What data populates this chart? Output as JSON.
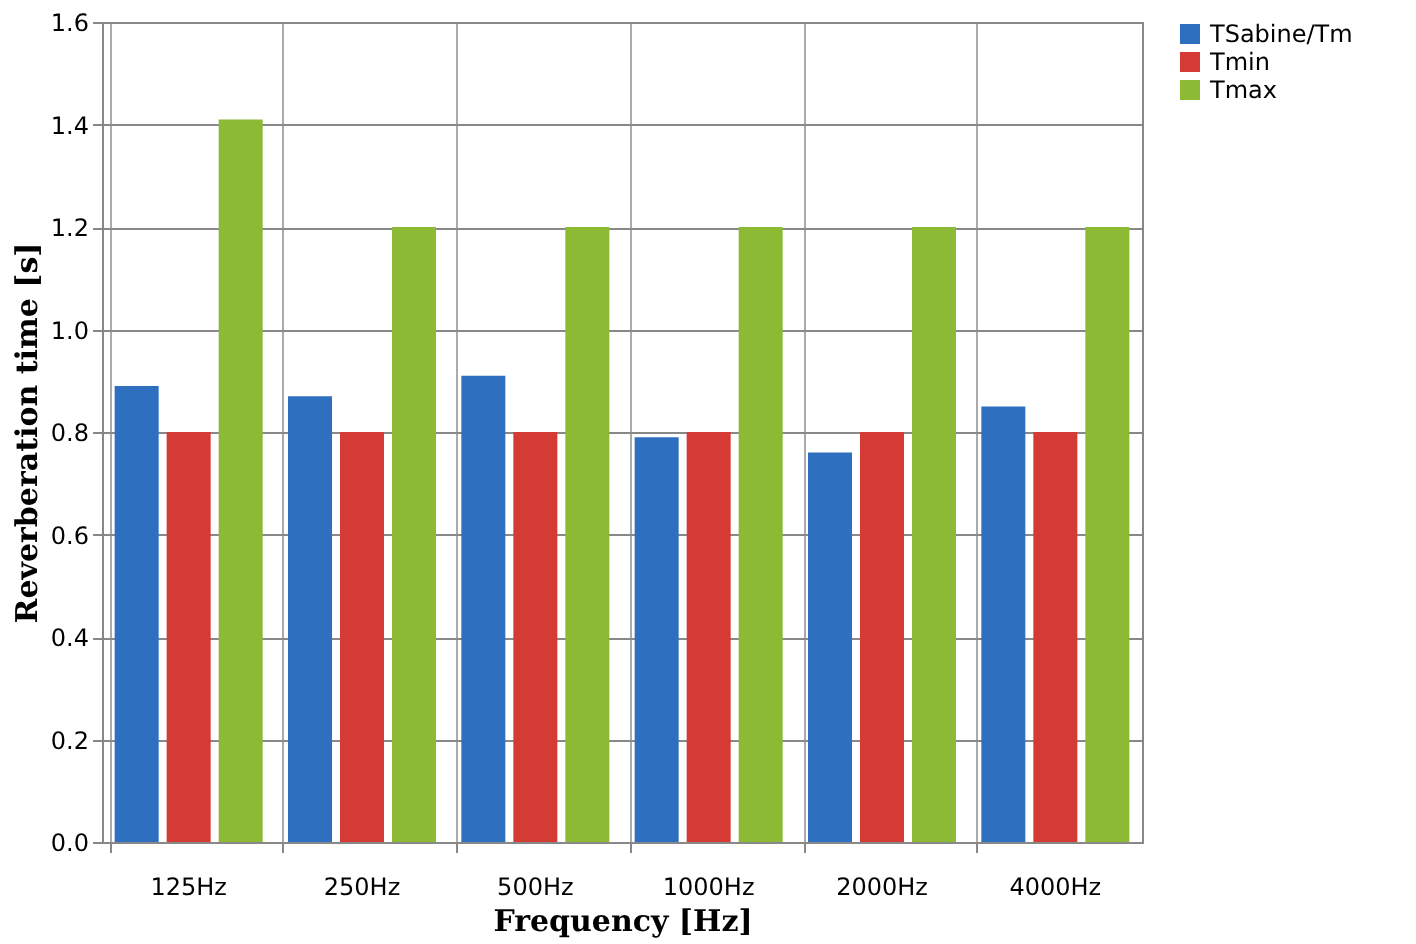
{
  "chart_data": {
    "type": "bar",
    "xlabel": "Frequency [Hz]",
    "ylabel": "Reverberation time [s]",
    "categories": [
      "125Hz",
      "250Hz",
      "500Hz",
      "1000Hz",
      "2000Hz",
      "4000Hz"
    ],
    "series": [
      {
        "name": "TSabine/Tm",
        "color": "#2e6fc0",
        "values": [
          0.89,
          0.87,
          0.91,
          0.79,
          0.76,
          0.85
        ]
      },
      {
        "name": "Tmin",
        "color": "#d63a35",
        "values": [
          0.8,
          0.8,
          0.8,
          0.8,
          0.8,
          0.8
        ]
      },
      {
        "name": "Tmax",
        "color": "#8cba34",
        "values": [
          1.41,
          1.2,
          1.2,
          1.2,
          1.2,
          1.2
        ]
      }
    ],
    "ylim": [
      0,
      1.6
    ],
    "yticks": [
      {
        "value": 0,
        "label": "0.0"
      },
      {
        "value": 0.2,
        "label": "0.2"
      },
      {
        "value": 0.4,
        "label": "0.4"
      },
      {
        "value": 0.6,
        "label": "0.6"
      },
      {
        "value": 0.8,
        "label": "0.8"
      },
      {
        "value": 1.0,
        "label": "1.0"
      },
      {
        "value": 1.2,
        "label": "1.2"
      },
      {
        "value": 1.4,
        "label": "1.4"
      },
      {
        "value": 1.6,
        "label": "1.6"
      }
    ],
    "grid": true,
    "legend": "right"
  }
}
